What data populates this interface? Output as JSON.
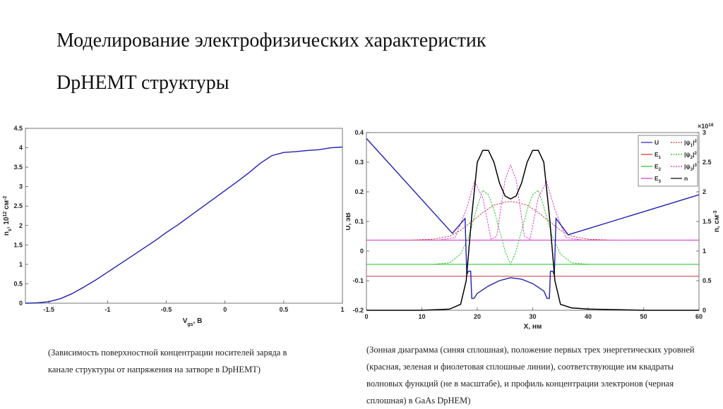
{
  "slide": {
    "title_line1": "Моделирование электрофизических характеристик",
    "title_line2": "DpHEMT структуры",
    "caption_left": "(Зависимость поверхностной концентрации носителей заряда в канале структуры от напряжения на затворе в DpHEMT)",
    "caption_right": "(Зонная диаграмма (синяя сплошная), положение первых трех энергетических уровней (красная, зеленая и фиолетовая сплошные линии), соответствующие им квадраты волновых функций (не в масштабе), и профиль концентрации электронов (черная сплошная) в GaAs DpHEM)"
  },
  "chart_data": [
    {
      "type": "line",
      "xlabel": "V",
      "xlabel_sub": "gs",
      "xlabel_suffix": ", В",
      "ylabel": "n",
      "ylabel_sub": "s",
      "ylabel_suffix": ", 10",
      "ylabel_sup": "12",
      "ylabel_unit": " см",
      "ylabel_unit_sup": "-2",
      "xlim": [
        -1.7,
        1
      ],
      "ylim": [
        0,
        4.5
      ],
      "xticks": [
        -1.5,
        -1,
        -0.5,
        0,
        0.5,
        1
      ],
      "xtick_labels": [
        "-1.5",
        "-1",
        "-0.5",
        "0",
        "0.5",
        "1"
      ],
      "yticks": [
        0,
        0.5,
        1,
        1.5,
        2,
        2.5,
        3,
        3.5,
        4,
        4.5
      ],
      "ytick_labels": [
        "0",
        "0.5",
        "1",
        "1.5",
        "2",
        "2.5",
        "3",
        "3.5",
        "4",
        "4.5"
      ],
      "series": [
        {
          "color": "#1f1fb4",
          "x": [
            -1.7,
            -1.6,
            -1.5,
            -1.4,
            -1.3,
            -1.2,
            -1.1,
            -1.0,
            -0.9,
            -0.8,
            -0.7,
            -0.6,
            -0.5,
            -0.4,
            -0.3,
            -0.2,
            -0.1,
            0.0,
            0.1,
            0.2,
            0.3,
            0.4,
            0.5,
            0.6,
            0.7,
            0.8,
            0.9,
            1.0
          ],
          "y": [
            0.0,
            0.01,
            0.04,
            0.12,
            0.25,
            0.42,
            0.6,
            0.8,
            1.0,
            1.2,
            1.4,
            1.6,
            1.82,
            2.02,
            2.24,
            2.46,
            2.68,
            2.9,
            3.12,
            3.35,
            3.6,
            3.8,
            3.88,
            3.9,
            3.93,
            3.95,
            4.0,
            4.02
          ]
        }
      ]
    },
    {
      "type": "line",
      "xlabel": "X, нм",
      "ylabel_left": "U, эВ",
      "ylabel_right": "n, см",
      "ylabel_right_sup": "-3",
      "right_axis_multiplier": "×10",
      "right_axis_multiplier_sup": "18",
      "xlim": [
        0,
        60
      ],
      "ylim_left": [
        -0.2,
        0.4
      ],
      "ylim_right": [
        0,
        3
      ],
      "xticks": [
        0,
        10,
        20,
        30,
        40,
        50,
        60
      ],
      "xtick_labels": [
        "0",
        "10",
        "20",
        "30",
        "40",
        "50",
        "60"
      ],
      "yticks_left": [
        -0.2,
        -0.1,
        0,
        0.1,
        0.2,
        0.3,
        0.4
      ],
      "ytick_labels_left": [
        "-0.2",
        "-0.1",
        "0",
        "0.1",
        "0.2",
        "0.3",
        "0.4"
      ],
      "yticks_right": [
        0,
        0.5,
        1,
        1.5,
        2,
        2.5,
        3
      ],
      "ytick_labels_right": [
        "0",
        "0.5",
        "1",
        "1.5",
        "2",
        "2.5",
        "3"
      ],
      "legend_position": "top-right",
      "legend": [
        {
          "label": "U",
          "color": "#1f1fb4",
          "dash": false
        },
        {
          "label": "E",
          "sub": "1",
          "color": "#d03030",
          "dash": false
        },
        {
          "label": "E",
          "sub": "2",
          "color": "#20c020",
          "dash": false
        },
        {
          "label": "E",
          "sub": "3",
          "color": "#d030d0",
          "dash": false
        },
        {
          "label": "|ψ",
          "sub": "1",
          "post": "|",
          "sup": "2",
          "color": "#d03030",
          "dash": true
        },
        {
          "label": "|ψ",
          "sub": "2",
          "post": "|",
          "sup": "2",
          "color": "#20c020",
          "dash": true
        },
        {
          "label": "|ψ",
          "sub": "3",
          "post": "|",
          "sup": "3",
          "color": "#d030d0",
          "dash": true
        },
        {
          "label": "n",
          "color": "#000000",
          "dash": false
        }
      ],
      "levels": {
        "E1": -0.085,
        "E2": -0.045,
        "E3": 0.037
      },
      "U": {
        "x": [
          0,
          15.5,
          17.8,
          18.1,
          18.4,
          18.8,
          19.0,
          19.4,
          20,
          22,
          24,
          26,
          28,
          30,
          32,
          32.6,
          33.0,
          33.2,
          33.6,
          33.9,
          34.2,
          36.4,
          60
        ],
        "y": [
          0.38,
          0.06,
          0.11,
          -0.08,
          -0.068,
          -0.068,
          -0.16,
          -0.16,
          -0.143,
          -0.118,
          -0.1,
          -0.09,
          -0.095,
          -0.11,
          -0.135,
          -0.16,
          -0.16,
          -0.068,
          -0.068,
          -0.08,
          0.11,
          0.055,
          0.19
        ]
      },
      "psi1": {
        "x": [
          8,
          12,
          15,
          17,
          19,
          21,
          23,
          25,
          26,
          27,
          29,
          31,
          33,
          35,
          37,
          40,
          44
        ],
        "y": [
          0.037,
          0.04,
          0.05,
          0.07,
          0.1,
          0.13,
          0.155,
          0.165,
          0.167,
          0.165,
          0.155,
          0.13,
          0.1,
          0.07,
          0.05,
          0.04,
          0.037
        ]
      },
      "psi2": {
        "x": [
          12,
          15,
          17,
          18.5,
          20,
          21,
          22,
          23,
          24,
          25,
          26,
          27,
          28,
          29,
          30,
          31,
          32,
          33.5,
          35,
          37,
          40
        ],
        "y": [
          -0.045,
          -0.04,
          -0.01,
          0.05,
          0.15,
          0.205,
          0.19,
          0.14,
          0.07,
          0.0,
          -0.045,
          0.0,
          0.07,
          0.14,
          0.19,
          0.205,
          0.15,
          0.05,
          -0.01,
          -0.04,
          -0.045
        ]
      },
      "psi3": {
        "x": [
          13,
          16,
          18,
          19.5,
          21,
          22.5,
          23.5,
          25,
          26,
          27,
          28.5,
          29.5,
          31,
          32.5,
          34,
          36,
          39
        ],
        "y": [
          0.037,
          0.045,
          0.14,
          0.235,
          0.18,
          0.04,
          0.05,
          0.24,
          0.29,
          0.24,
          0.05,
          0.04,
          0.18,
          0.235,
          0.14,
          0.045,
          0.037
        ]
      },
      "n": {
        "x": [
          0,
          10,
          15,
          17,
          18,
          19,
          20,
          21,
          22,
          23,
          24,
          25,
          26,
          27,
          28,
          29,
          30,
          31,
          32,
          33,
          34,
          35,
          37,
          40,
          50,
          60
        ],
        "y": [
          0.0,
          0.0,
          0.02,
          0.1,
          0.5,
          1.6,
          2.5,
          2.7,
          2.7,
          2.5,
          2.15,
          1.93,
          1.88,
          1.93,
          2.15,
          2.5,
          2.7,
          2.7,
          2.5,
          1.6,
          0.5,
          0.1,
          0.04,
          0.02,
          0.0,
          0.0
        ]
      }
    }
  ]
}
